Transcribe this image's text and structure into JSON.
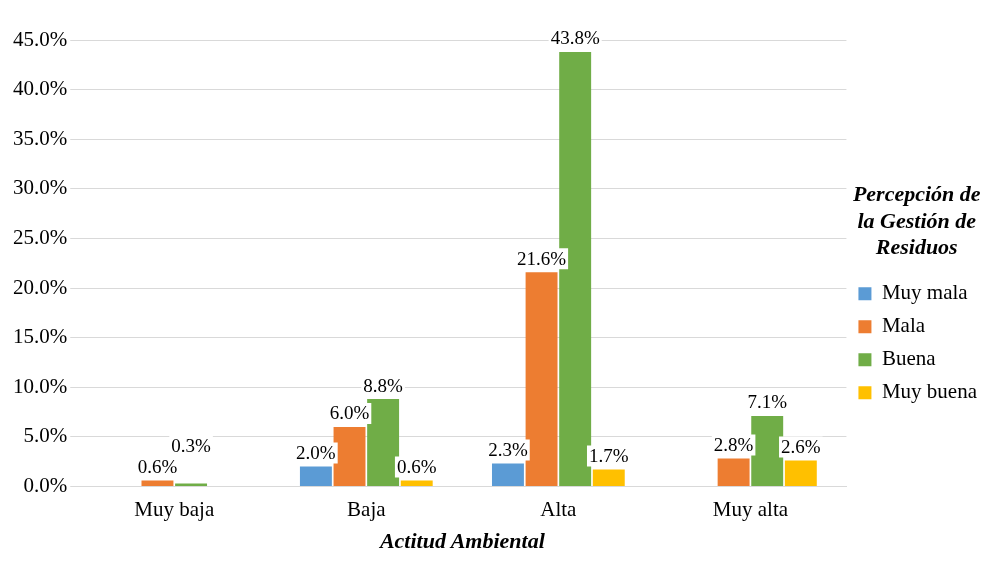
{
  "chart_data": {
    "type": "bar",
    "xlabel": "Actitud Ambiental",
    "legend_title": "Percepción de la Gestión de Residuos",
    "categories": [
      "Muy baja",
      "Baja",
      "Alta",
      "Muy alta"
    ],
    "series": [
      {
        "name": "Muy mala",
        "color": "#5b9bd5",
        "values": [
          0,
          2.0,
          2.3,
          0
        ],
        "value_labels": [
          null,
          "2.0%",
          "2.3%",
          null
        ]
      },
      {
        "name": "Mala",
        "color": "#ed7d31",
        "values": [
          0.6,
          6.0,
          21.6,
          2.8
        ],
        "value_labels": [
          "0.6%",
          "6.0%",
          "21.6%",
          "2.8%"
        ]
      },
      {
        "name": "Buena",
        "color": "#70ad47",
        "values": [
          0.3,
          8.8,
          43.8,
          7.1
        ],
        "value_labels": [
          "0.3%",
          "8.8%",
          "43.8%",
          "7.1%"
        ]
      },
      {
        "name": "Muy buena",
        "color": "#ffc000",
        "values": [
          0,
          0.6,
          1.7,
          2.6
        ],
        "value_labels": [
          null,
          "0.6%",
          "1.7%",
          "2.6%"
        ]
      }
    ],
    "ylim": [
      0,
      45
    ],
    "yticks": [
      {
        "value": 0,
        "label": "0.0%"
      },
      {
        "value": 5,
        "label": "5.0%"
      },
      {
        "value": 10,
        "label": "10.0%"
      },
      {
        "value": 15,
        "label": "15.0%"
      },
      {
        "value": 20,
        "label": "20.0%"
      },
      {
        "value": 25,
        "label": "25.0%"
      },
      {
        "value": 30,
        "label": "30.0%"
      },
      {
        "value": 35,
        "label": "35.0%"
      },
      {
        "value": 40,
        "label": "40.0%"
      },
      {
        "value": 45,
        "label": "45.0%"
      }
    ],
    "grid": "y",
    "legend": "right"
  }
}
